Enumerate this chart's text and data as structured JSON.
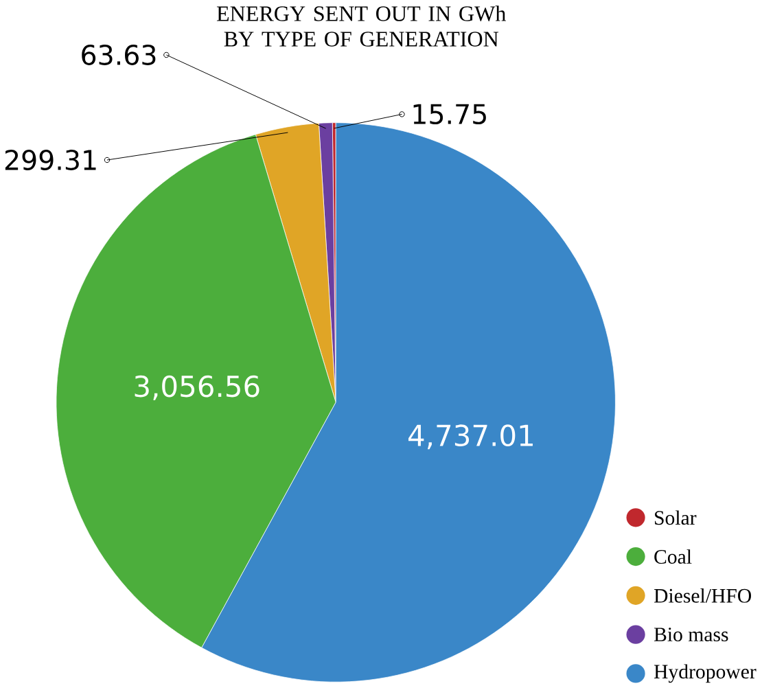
{
  "chart_data": {
    "type": "pie",
    "title": "ENERGY SENT OUT IN GWh BY TYPE OF GENERATION",
    "categories": [
      "Solar",
      "Coal",
      "Diesel/HFO",
      "Bio mass",
      "Hydropower"
    ],
    "values": [
      15.75,
      3056.56,
      299.31,
      63.63,
      4737.01
    ],
    "colors": [
      "#c0282d",
      "#4cae3c",
      "#e0a526",
      "#6b3fa0",
      "#3a87c8"
    ],
    "value_labels": [
      "15.75",
      "3,056.56",
      "299.31",
      "63.63",
      "4,737.01"
    ],
    "legend": "bottom right"
  }
}
